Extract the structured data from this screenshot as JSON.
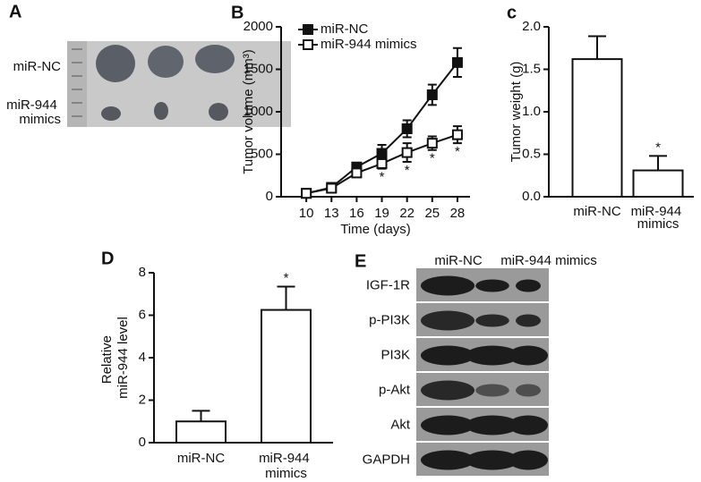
{
  "photo_panel": {
    "panel": "A",
    "rows": [
      "miR-NC",
      "miR-944 mimics"
    ]
  },
  "blot_panel": {
    "panel": "E",
    "groups": [
      "miR-NC",
      "miR-944 mimics"
    ],
    "rows": [
      "IGF-1R",
      "p-PI3K",
      "PI3K",
      "p-Akt",
      "Akt",
      "GAPDH"
    ]
  },
  "chart_data": [
    {
      "type": "line",
      "panel": "B",
      "x_label": "Time (days)",
      "y_label": "Tumor volume (mm³)",
      "x": [
        10,
        13,
        16,
        19,
        22,
        25,
        28
      ],
      "xlim": [
        7,
        29.5
      ],
      "xticks": [
        10,
        13,
        16,
        19,
        22,
        25,
        28
      ],
      "ylim": [
        0,
        2000
      ],
      "yticks": [
        0,
        500,
        1000,
        1500,
        2000
      ],
      "series": [
        {
          "name": "miR-NC",
          "color": "#111111",
          "marker": "filled-square",
          "values": [
            40,
            110,
            350,
            510,
            800,
            1200,
            1580
          ],
          "errors": [
            20,
            20,
            50,
            100,
            100,
            120,
            170
          ]
        },
        {
          "name": "miR-944 mimics",
          "color": "#111111",
          "marker": "open-square",
          "values": [
            40,
            100,
            280,
            390,
            520,
            630,
            730
          ],
          "errors": [
            20,
            20,
            40,
            60,
            110,
            80,
            100
          ]
        }
      ],
      "annotations": [
        {
          "text": "*",
          "x": 19
        },
        {
          "text": "*",
          "x": 22
        },
        {
          "text": "*",
          "x": 25
        },
        {
          "text": "*",
          "x": 28
        }
      ]
    },
    {
      "type": "bar",
      "panel": "c",
      "y_label": "Tumor weight (g)",
      "categories": [
        "miR-NC",
        "miR-944 mimics"
      ],
      "values": [
        1.62,
        0.31
      ],
      "errors": [
        0.27,
        0.17
      ],
      "ylim": [
        0,
        2.0
      ],
      "yticks": [
        {
          "value": 0,
          "label": "0.0"
        },
        0.5,
        {
          "value": 1,
          "label": "1.0"
        },
        1.5,
        {
          "value": 2,
          "label": "2.0"
        }
      ],
      "annotations": [
        {
          "text": "*",
          "index": 1
        }
      ]
    },
    {
      "type": "bar",
      "panel": "D",
      "y_label": "Relative miR-944 level",
      "categories": [
        "miR-NC",
        "miR-944 mimics"
      ],
      "values": [
        1.0,
        6.25
      ],
      "errors": [
        0.5,
        1.1
      ],
      "ylim": [
        0,
        8
      ],
      "yticks": [
        0,
        2,
        4,
        6,
        8
      ],
      "annotations": [
        {
          "text": "*",
          "index": 1
        }
      ]
    }
  ]
}
